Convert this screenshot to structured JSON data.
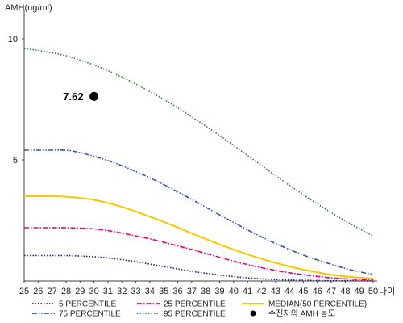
{
  "chart_data": {
    "type": "line",
    "ylabel": "AMH(ng/ml)",
    "xlabel": "나이",
    "xlim": [
      25,
      50
    ],
    "ylim": [
      0,
      11
    ],
    "x": [
      25,
      26,
      27,
      28,
      29,
      30,
      31,
      32,
      33,
      34,
      35,
      36,
      37,
      38,
      39,
      40,
      41,
      42,
      43,
      44,
      45,
      46,
      47,
      48,
      49,
      50
    ],
    "x_ticks": [
      "25",
      "26",
      "27",
      "28",
      "29",
      "30",
      "31",
      "32",
      "33",
      "34",
      "35",
      "36",
      "37",
      "38",
      "39",
      "40",
      "41",
      "42",
      "43",
      "44",
      "45",
      "46",
      "47",
      "48",
      "49",
      "50"
    ],
    "y_ticks": [
      {
        "value": 5,
        "label": "5"
      },
      {
        "value": 10,
        "label": "10"
      }
    ],
    "series": [
      {
        "name": "5 PERCENTILE",
        "color": "#1a237e",
        "dash": "dotted",
        "values": [
          1.05,
          1.05,
          1.05,
          1.05,
          1.03,
          1.0,
          0.95,
          0.88,
          0.8,
          0.7,
          0.6,
          0.5,
          0.4,
          0.32,
          0.25,
          0.18,
          0.13,
          0.09,
          0.06,
          0.04,
          0.03,
          0.02,
          0.01,
          0.01,
          0.01,
          0.0
        ]
      },
      {
        "name": "25 PERCENTILE",
        "color": "#e6007e",
        "dash": "dashdot",
        "values": [
          2.2,
          2.2,
          2.2,
          2.2,
          2.18,
          2.15,
          2.08,
          1.98,
          1.86,
          1.74,
          1.6,
          1.45,
          1.3,
          1.14,
          0.98,
          0.82,
          0.68,
          0.55,
          0.44,
          0.34,
          0.26,
          0.19,
          0.13,
          0.09,
          0.06,
          0.05
        ]
      },
      {
        "name": "MEDIAN(50 PERCENTILE)",
        "color": "#f5c800",
        "dash": "solid",
        "values": [
          3.5,
          3.5,
          3.5,
          3.48,
          3.43,
          3.35,
          3.22,
          3.06,
          2.87,
          2.66,
          2.44,
          2.21,
          1.97,
          1.74,
          1.51,
          1.3,
          1.1,
          0.92,
          0.75,
          0.6,
          0.47,
          0.36,
          0.26,
          0.19,
          0.14,
          0.1
        ]
      },
      {
        "name": "75 PERCENTILE",
        "color": "#3355bb",
        "dash": "dashdotdot",
        "values": [
          5.4,
          5.4,
          5.4,
          5.4,
          5.3,
          5.15,
          4.97,
          4.76,
          4.52,
          4.26,
          3.98,
          3.68,
          3.37,
          3.05,
          2.73,
          2.42,
          2.11,
          1.82,
          1.55,
          1.3,
          1.07,
          0.87,
          0.69,
          0.52,
          0.38,
          0.27
        ]
      },
      {
        "name": "95 PERCENTILE",
        "color": "#2e7d32",
        "dash": "dotted",
        "values": [
          9.6,
          9.52,
          9.42,
          9.3,
          9.12,
          8.92,
          8.68,
          8.42,
          8.13,
          7.82,
          7.5,
          7.15,
          6.78,
          6.4,
          6.0,
          5.6,
          5.18,
          4.77,
          4.35,
          3.95,
          3.56,
          3.18,
          2.82,
          2.48,
          2.16,
          1.85
        ]
      }
    ],
    "points": [
      {
        "name": "수진자의 AMH 농도",
        "x": 30,
        "y": 7.62,
        "label": "7.62",
        "color": "#000000"
      }
    ],
    "legend": {
      "position": "bottom",
      "items": [
        {
          "label": "5 PERCENTILE",
          "series": 0
        },
        {
          "label": "25 PERCENTILE",
          "series": 1
        },
        {
          "label": "MEDIAN(50 PERCENTILE)",
          "series": 2
        },
        {
          "label": "75 PERCENTILE",
          "series": 3
        },
        {
          "label": "95 PERCENTILE",
          "series": 4
        },
        {
          "label": "수진자의 AMH 농도",
          "point": 0
        }
      ]
    },
    "grid": false
  }
}
